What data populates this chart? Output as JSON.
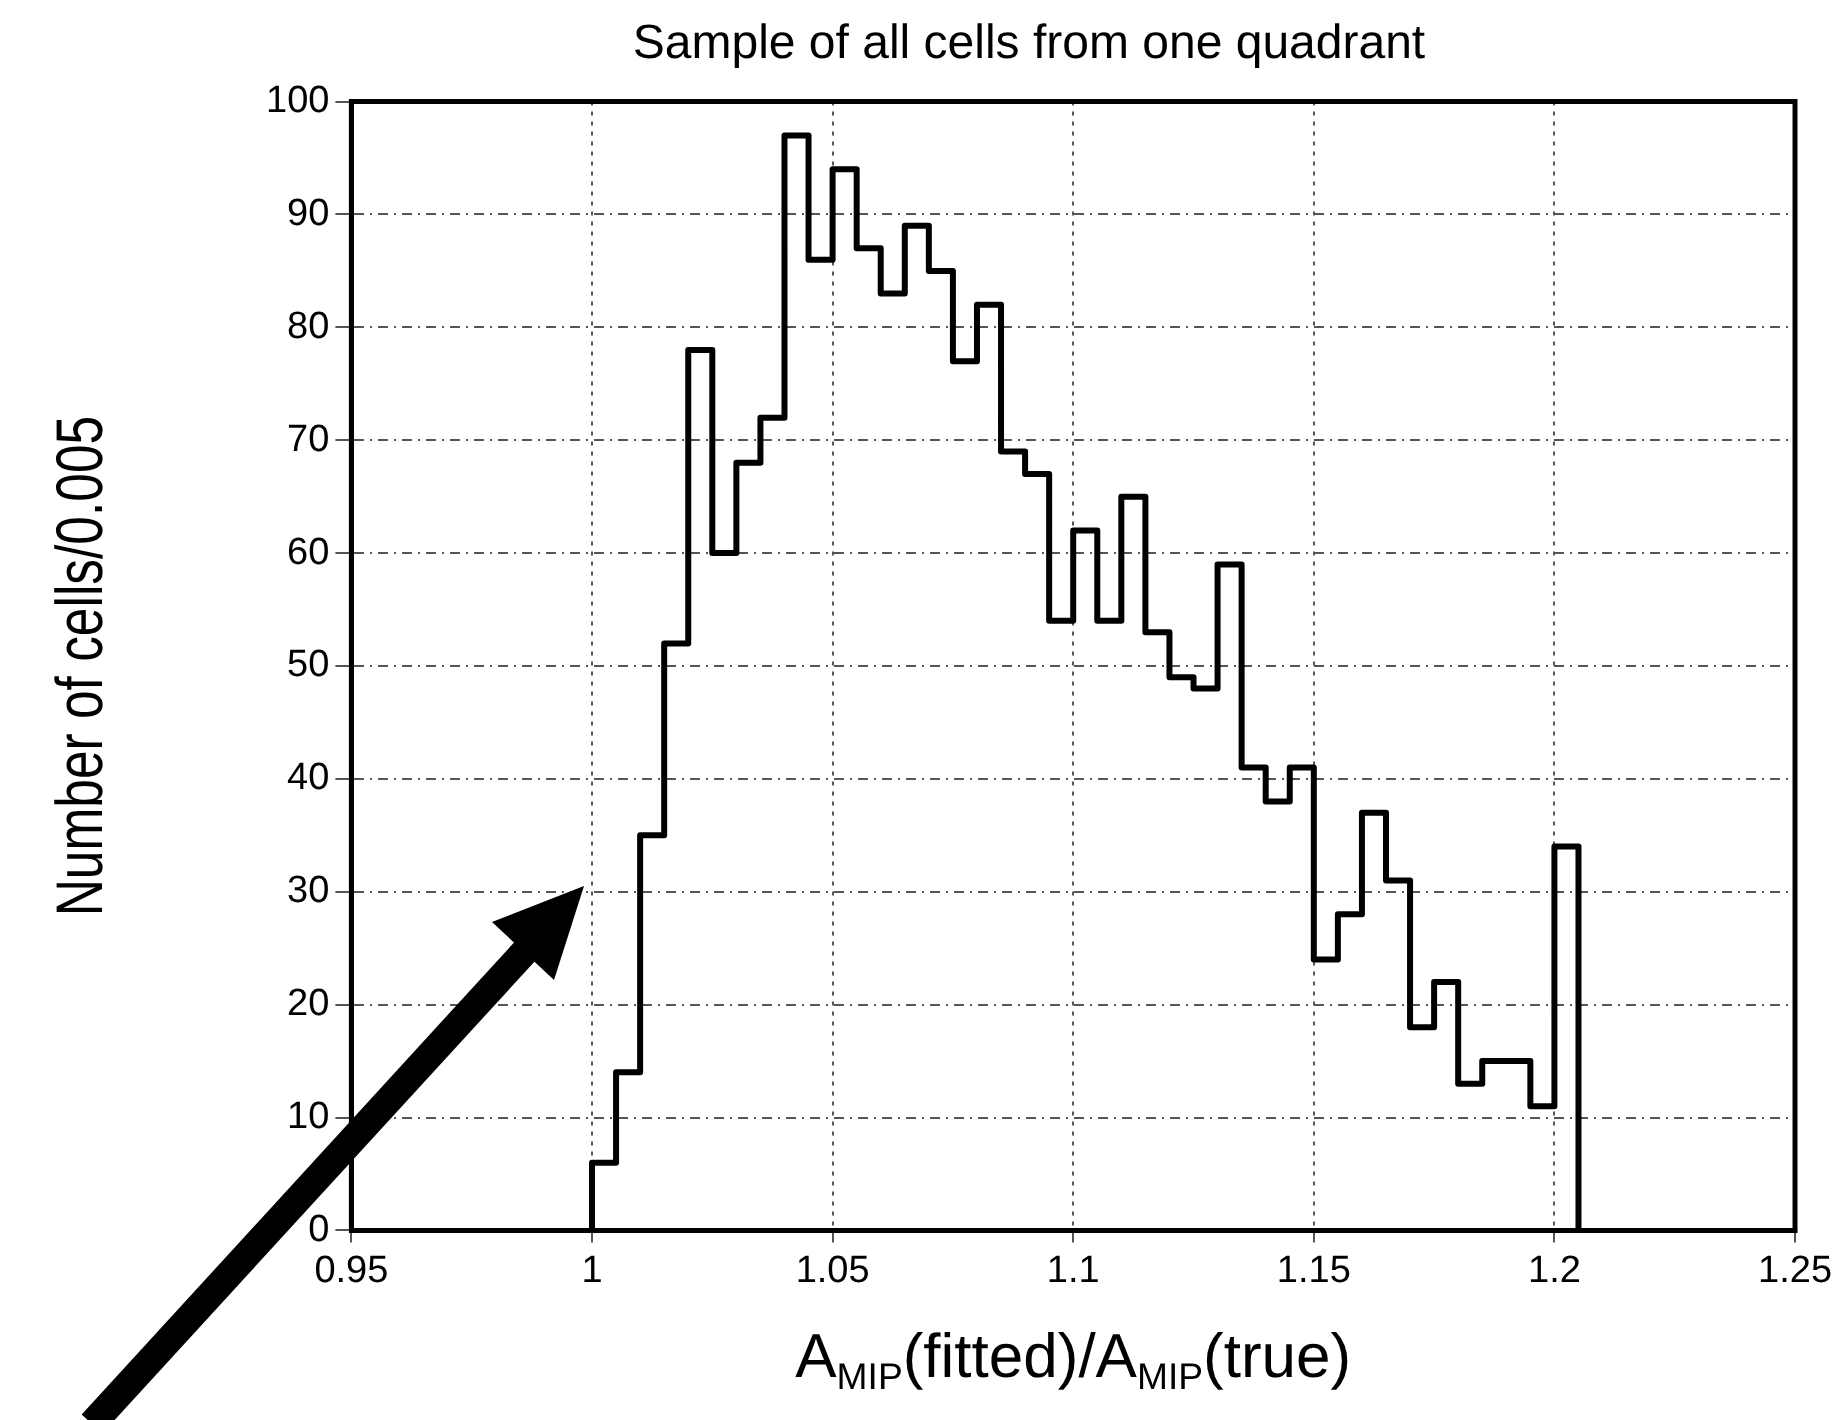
{
  "chart_data": {
    "type": "histogram",
    "title": "Sample of all cells from one quadrant",
    "xlabel": "A$_{MIP}$(fitted)/A$_{MIP}$(true)",
    "ylabel": "Number of cells/0.005",
    "color": "#000000",
    "bins": [
      1.0,
      1.005,
      1.01,
      1.015,
      1.02,
      1.025,
      1.03,
      1.035,
      1.04,
      1.045,
      1.05,
      1.055,
      1.06,
      1.065,
      1.07,
      1.075,
      1.08,
      1.085,
      1.09,
      1.095,
      1.1,
      1.105,
      1.11,
      1.115,
      1.12,
      1.125,
      1.13,
      1.135,
      1.14,
      1.145,
      1.15,
      1.155,
      1.16,
      1.165,
      1.17,
      1.175,
      1.18,
      1.185,
      1.19,
      1.195,
      1.2,
      1.205
    ],
    "values": [
      6,
      14,
      35,
      52,
      78,
      60,
      68,
      72,
      97,
      86,
      94,
      87,
      83,
      89,
      85,
      77,
      82,
      69,
      67,
      54,
      62,
      54,
      65,
      53,
      49,
      48,
      59,
      41,
      38,
      41,
      24,
      28,
      37,
      31,
      18,
      22,
      13,
      15,
      15,
      11,
      34
    ],
    "xlim": [
      0.95,
      1.25
    ],
    "ylim": [
      0,
      100
    ],
    "xticks": [
      0.95,
      1,
      1.05,
      1.1,
      1.15,
      1.2,
      1.25
    ],
    "yticks": [
      0,
      10,
      20,
      30,
      40,
      50,
      60,
      70,
      80,
      90,
      100
    ],
    "grid": true
  }
}
